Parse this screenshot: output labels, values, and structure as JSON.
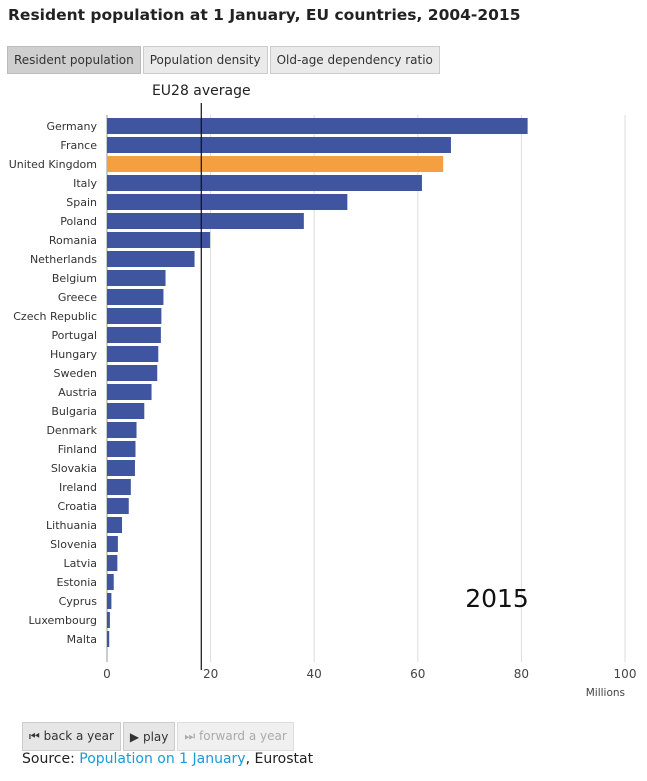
{
  "title": "Resident population at 1 January, EU countries, 2004-2015",
  "tabs": [
    {
      "label": "Resident population",
      "active": true
    },
    {
      "label": "Population density",
      "active": false
    },
    {
      "label": "Old-age dependency ratio",
      "active": false
    }
  ],
  "controls": {
    "back": "back a year",
    "play": "play",
    "forward": "forward a year",
    "back_icon": "skip-back-icon",
    "play_icon": "play-icon",
    "forward_icon": "skip-forward-icon"
  },
  "source": {
    "prefix": "Source: ",
    "link": "Population on 1 January",
    "suffix": ", Eurostat"
  },
  "chart_data": {
    "type": "bar",
    "orientation": "horizontal",
    "year_label": "2015",
    "xlabel": "Millions",
    "xlim": [
      0,
      100
    ],
    "xticks": [
      0,
      20,
      40,
      60,
      80,
      100
    ],
    "grid": true,
    "reference_line": {
      "label": "EU28 average",
      "value": 18.2
    },
    "colors": {
      "default": "#3f55a0",
      "highlight": "#f5a040"
    },
    "highlight": "United Kingdom",
    "categories": [
      "Germany",
      "France",
      "United Kingdom",
      "Italy",
      "Spain",
      "Poland",
      "Romania",
      "Netherlands",
      "Belgium",
      "Greece",
      "Czech Republic",
      "Portugal",
      "Hungary",
      "Sweden",
      "Austria",
      "Bulgaria",
      "Denmark",
      "Finland",
      "Slovakia",
      "Ireland",
      "Croatia",
      "Lithuania",
      "Slovenia",
      "Latvia",
      "Estonia",
      "Cyprus",
      "Luxembourg",
      "Malta"
    ],
    "values": [
      81.2,
      66.4,
      64.9,
      60.8,
      46.4,
      38.0,
      19.9,
      16.9,
      11.3,
      10.9,
      10.5,
      10.4,
      9.9,
      9.7,
      8.6,
      7.2,
      5.7,
      5.5,
      5.4,
      4.6,
      4.2,
      2.9,
      2.1,
      2.0,
      1.3,
      0.85,
      0.56,
      0.43
    ]
  }
}
